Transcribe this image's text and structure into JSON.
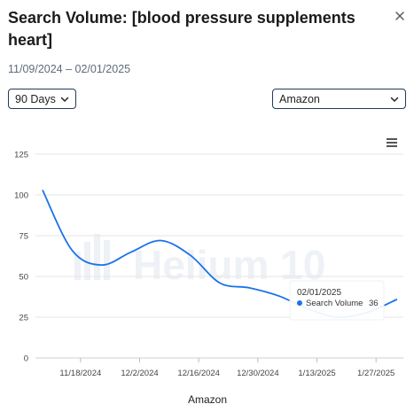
{
  "header": {
    "title": "Search Volume: [blood pressure supplements heart]",
    "date_range": "11/09/2024 – 02/01/2025"
  },
  "controls": {
    "days_selected": "90 Days",
    "marketplace_selected": "Amazon"
  },
  "icons": {
    "close": "close-icon",
    "menu": "hamburger-menu-icon",
    "dropdown": "chevron-down-icon"
  },
  "watermark": "Helium 10",
  "tooltip": {
    "date": "02/01/2025",
    "series": "Search Volume",
    "value": "36"
  },
  "colors": {
    "line": "#1a73e8",
    "grid": "#e6e6e6"
  },
  "chart_data": {
    "type": "line",
    "xlabel": "Amazon",
    "ylabel": "",
    "ylim": [
      0,
      125
    ],
    "yticks": [
      0,
      25,
      50,
      75,
      100,
      125
    ],
    "xticks": [
      "11/18/2024",
      "12/2/2024",
      "12/16/2024",
      "12/30/2024",
      "1/13/2025",
      "1/27/2025"
    ],
    "x": [
      "11/09/2024",
      "11/16/2024",
      "11/23/2024",
      "11/30/2024",
      "12/07/2024",
      "12/14/2024",
      "12/21/2024",
      "12/28/2024",
      "01/04/2025",
      "01/11/2025",
      "01/18/2025",
      "01/25/2025",
      "02/01/2025"
    ],
    "series": [
      {
        "name": "Search Volume",
        "values": [
          103,
          66,
          57,
          65,
          72,
          63,
          46,
          43,
          38,
          30,
          25,
          28,
          36
        ]
      }
    ]
  }
}
